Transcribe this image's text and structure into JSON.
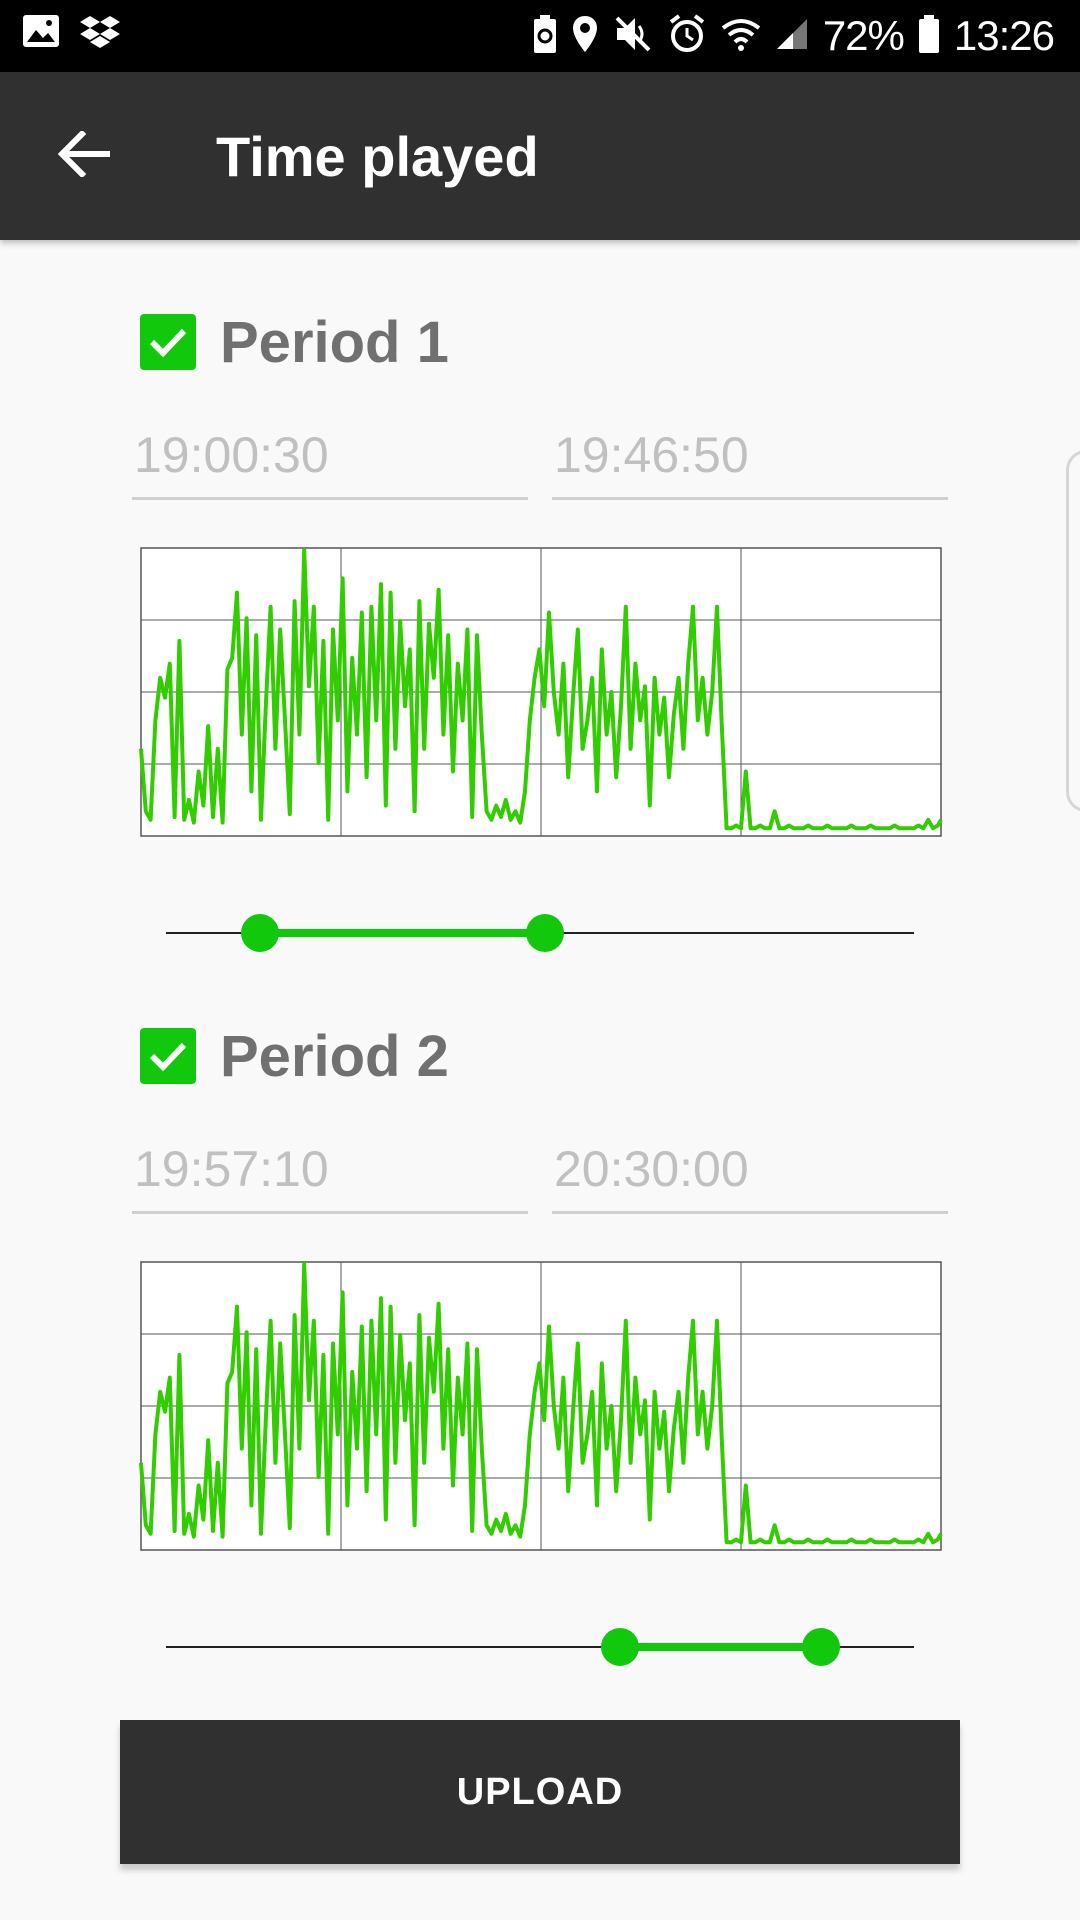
{
  "status_bar": {
    "battery_percent": "72%",
    "time": "13:26",
    "icons_left": [
      "image-icon",
      "dropbox-icon"
    ],
    "icons_right": [
      "battery-saver-icon",
      "location-icon",
      "mute-icon",
      "alarm-icon",
      "wifi-icon",
      "signal-icon",
      "battery-icon"
    ]
  },
  "app_bar": {
    "title": "Time played",
    "back_icon": "arrow-left-icon"
  },
  "periods": [
    {
      "label": "Period 1",
      "checked": true,
      "start_time": "19:00:30",
      "end_time": "19:46:50",
      "slider_range": [
        0.126,
        0.507
      ]
    },
    {
      "label": "Period 2",
      "checked": true,
      "start_time": "19:57:10",
      "end_time": "20:30:00",
      "slider_range": [
        0.607,
        0.876
      ]
    }
  ],
  "chart_data": {
    "type": "line",
    "x_range": [
      0,
      1
    ],
    "y_range": [
      0,
      1
    ],
    "grid": true,
    "color": "#32cd00",
    "series": [
      {
        "x": [
          0.0,
          0.006,
          0.012,
          0.018,
          0.024,
          0.03,
          0.036,
          0.042,
          0.048,
          0.054,
          0.06,
          0.066,
          0.072,
          0.078,
          0.084,
          0.09,
          0.096,
          0.102,
          0.108,
          0.114,
          0.12,
          0.126,
          0.132,
          0.138,
          0.144,
          0.15,
          0.156,
          0.162,
          0.168,
          0.174,
          0.18,
          0.186,
          0.192,
          0.198,
          0.204,
          0.21,
          0.216,
          0.222,
          0.228,
          0.234,
          0.24,
          0.246,
          0.252,
          0.258,
          0.264,
          0.27,
          0.276,
          0.282,
          0.288,
          0.294,
          0.3,
          0.306,
          0.312,
          0.318,
          0.324,
          0.33,
          0.336,
          0.342,
          0.348,
          0.354,
          0.36,
          0.366,
          0.372,
          0.378,
          0.384,
          0.39,
          0.396,
          0.402,
          0.408,
          0.414,
          0.42,
          0.426,
          0.432,
          0.438,
          0.444,
          0.45,
          0.456,
          0.462,
          0.468,
          0.474,
          0.48,
          0.486,
          0.492,
          0.498,
          0.504,
          0.51,
          0.516,
          0.522,
          0.528,
          0.534,
          0.54,
          0.546,
          0.552,
          0.558,
          0.564,
          0.57,
          0.576,
          0.582,
          0.588,
          0.594,
          0.6,
          0.606,
          0.612,
          0.618,
          0.624,
          0.63,
          0.636,
          0.642,
          0.648,
          0.654,
          0.66,
          0.666,
          0.672,
          0.678,
          0.684,
          0.69,
          0.696,
          0.702,
          0.708,
          0.714,
          0.72,
          0.726,
          0.732,
          0.738,
          0.744,
          0.75,
          0.756,
          0.762,
          0.768,
          0.774,
          0.78,
          0.786,
          0.792,
          0.798,
          0.804,
          0.81,
          0.816,
          0.822,
          0.828,
          0.834,
          0.84,
          0.846,
          0.852,
          0.858,
          0.864,
          0.87,
          0.876,
          0.882,
          0.888,
          0.894,
          0.9,
          0.906,
          0.912,
          0.918,
          0.924,
          0.93,
          0.936,
          0.942,
          0.948,
          0.954,
          0.96,
          0.966,
          0.972,
          0.978,
          0.984,
          0.99,
          0.996,
          1.0
        ],
        "y": [
          0.3,
          0.08,
          0.05,
          0.4,
          0.55,
          0.48,
          0.6,
          0.06,
          0.68,
          0.05,
          0.12,
          0.04,
          0.22,
          0.1,
          0.38,
          0.06,
          0.3,
          0.04,
          0.58,
          0.62,
          0.85,
          0.35,
          0.76,
          0.15,
          0.7,
          0.05,
          0.45,
          0.8,
          0.3,
          0.72,
          0.4,
          0.07,
          0.82,
          0.35,
          1.0,
          0.52,
          0.8,
          0.25,
          0.68,
          0.05,
          0.72,
          0.4,
          0.9,
          0.15,
          0.62,
          0.35,
          0.78,
          0.2,
          0.8,
          0.4,
          0.88,
          0.1,
          0.85,
          0.3,
          0.75,
          0.45,
          0.65,
          0.08,
          0.82,
          0.3,
          0.74,
          0.55,
          0.86,
          0.35,
          0.7,
          0.22,
          0.6,
          0.4,
          0.72,
          0.06,
          0.7,
          0.35,
          0.08,
          0.05,
          0.1,
          0.06,
          0.12,
          0.05,
          0.08,
          0.04,
          0.15,
          0.4,
          0.55,
          0.65,
          0.45,
          0.78,
          0.5,
          0.35,
          0.6,
          0.2,
          0.48,
          0.72,
          0.3,
          0.4,
          0.55,
          0.15,
          0.65,
          0.35,
          0.5,
          0.2,
          0.45,
          0.8,
          0.3,
          0.6,
          0.4,
          0.52,
          0.1,
          0.55,
          0.35,
          0.48,
          0.2,
          0.42,
          0.55,
          0.3,
          0.6,
          0.8,
          0.4,
          0.55,
          0.35,
          0.5,
          0.8,
          0.38,
          0.02,
          0.02,
          0.03,
          0.02,
          0.22,
          0.02,
          0.02,
          0.03,
          0.02,
          0.02,
          0.08,
          0.02,
          0.02,
          0.03,
          0.02,
          0.02,
          0.02,
          0.03,
          0.02,
          0.02,
          0.02,
          0.03,
          0.02,
          0.02,
          0.02,
          0.02,
          0.03,
          0.02,
          0.02,
          0.02,
          0.03,
          0.02,
          0.02,
          0.02,
          0.02,
          0.03,
          0.02,
          0.02,
          0.02,
          0.02,
          0.03,
          0.02,
          0.05,
          0.02,
          0.03,
          0.05
        ]
      }
    ]
  },
  "upload_button": {
    "label": "UPLOAD"
  }
}
